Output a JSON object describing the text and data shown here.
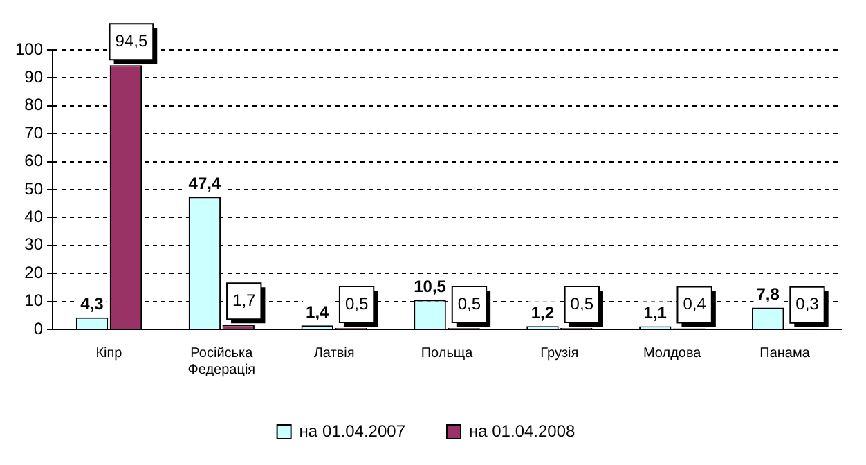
{
  "chart_data": {
    "type": "bar",
    "categories": [
      "Кіпр",
      "Російська Федерація",
      "Латвія",
      "Польща",
      "Грузія",
      "Молдова",
      "Панама"
    ],
    "series": [
      {
        "name": "на 01.04.2007",
        "color": "#ccffff",
        "values": [
          4.3,
          47.4,
          1.4,
          10.5,
          1.2,
          1.1,
          7.8
        ],
        "value_labels": [
          "4,3",
          "47,4",
          "1,4",
          "10,5",
          "1,2",
          "1,1",
          "7,8"
        ]
      },
      {
        "name": "на 01.04.2008",
        "color": "#993366",
        "values": [
          94.5,
          1.7,
          0.5,
          0.5,
          0.5,
          0.4,
          0.3
        ],
        "value_labels": [
          "94,5",
          "1,7",
          "0,5",
          "0,5",
          "0,5",
          "0,4",
          "0,3"
        ]
      }
    ],
    "ylim": [
      0,
      100
    ],
    "yticks": [
      0,
      10,
      20,
      30,
      40,
      50,
      60,
      70,
      80,
      90,
      100
    ],
    "grid": "y",
    "legend": "bottom"
  }
}
